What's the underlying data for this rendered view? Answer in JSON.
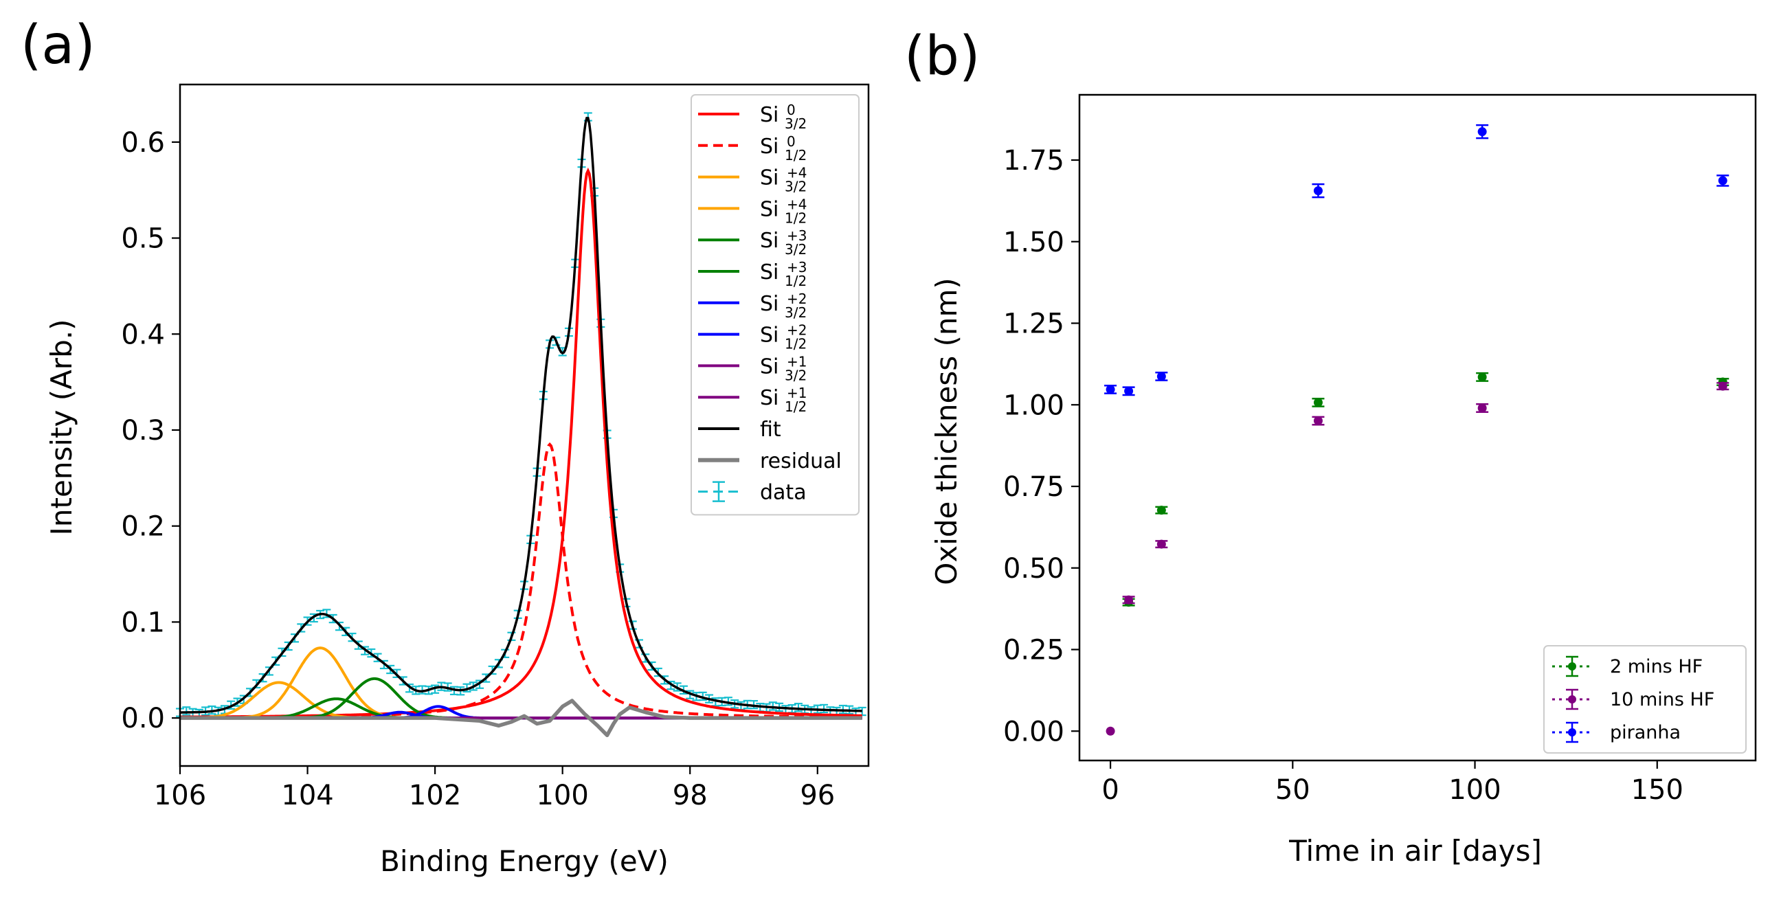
{
  "chart_data": [
    {
      "panel_label": "(a)",
      "type": "line",
      "xlabel": "Binding Energy (eV)",
      "ylabel": "Intensity (Arb.)",
      "xlim": [
        106,
        95.2
      ],
      "ylim": [
        -0.05,
        0.66
      ],
      "xticks": [
        106,
        104,
        102,
        100,
        98,
        96
      ],
      "xtick_labels": [
        "106",
        "104",
        "102",
        "100",
        "98",
        "96"
      ],
      "yticks": [
        0.0,
        0.1,
        0.2,
        0.3,
        0.4,
        0.5,
        0.6
      ],
      "ytick_labels": [
        "0.0",
        "0.1",
        "0.2",
        "0.3",
        "0.4",
        "0.5",
        "0.6"
      ],
      "legend_position": "top-right",
      "components": [
        {
          "name": "Si0 3/2",
          "base": "Si",
          "sup": "0",
          "sub": "3/2",
          "color": "#ff0000",
          "dash": "solid",
          "model": "lorentz",
          "center": 99.6,
          "amplitude": 0.57,
          "width": 0.28
        },
        {
          "name": "Si0 1/2",
          "base": "Si",
          "sup": "0",
          "sub": "1/2",
          "color": "#ff0000",
          "dash": "dashed",
          "model": "lorentz",
          "center": 100.2,
          "amplitude": 0.285,
          "width": 0.28
        },
        {
          "name": "Si+4 3/2",
          "base": "Si",
          "sup": "+4",
          "sub": "3/2",
          "color": "#ffa500",
          "dash": "solid",
          "model": "gauss",
          "center": 103.8,
          "amplitude": 0.073,
          "width": 0.55
        },
        {
          "name": "Si+4 1/2",
          "base": "Si",
          "sup": "+4",
          "sub": "1/2",
          "color": "#ffa500",
          "dash": "solid",
          "model": "gauss",
          "center": 104.45,
          "amplitude": 0.037,
          "width": 0.55
        },
        {
          "name": "Si+3 3/2",
          "base": "Si",
          "sup": "+3",
          "sub": "3/2",
          "color": "#008000",
          "dash": "solid",
          "model": "gauss",
          "center": 102.95,
          "amplitude": 0.041,
          "width": 0.5
        },
        {
          "name": "Si+3 1/2",
          "base": "Si",
          "sup": "+3",
          "sub": "1/2",
          "color": "#008000",
          "dash": "solid",
          "model": "gauss",
          "center": 103.55,
          "amplitude": 0.02,
          "width": 0.5
        },
        {
          "name": "Si+2 3/2",
          "base": "Si",
          "sup": "+2",
          "sub": "3/2",
          "color": "#0000ff",
          "dash": "solid",
          "model": "gauss",
          "center": 101.95,
          "amplitude": 0.012,
          "width": 0.3
        },
        {
          "name": "Si+2 1/2",
          "base": "Si",
          "sup": "+2",
          "sub": "1/2",
          "color": "#0000ff",
          "dash": "solid",
          "model": "gauss",
          "center": 102.55,
          "amplitude": 0.006,
          "width": 0.3
        },
        {
          "name": "Si+1 3/2",
          "base": "Si",
          "sup": "+1",
          "sub": "3/2",
          "color": "#800080",
          "dash": "solid",
          "model": "gauss",
          "center": 101.0,
          "amplitude": 0.0,
          "width": 0.4
        },
        {
          "name": "Si+1 1/2",
          "base": "Si",
          "sup": "+1",
          "sub": "1/2",
          "color": "#800080",
          "dash": "solid",
          "model": "gauss",
          "center": 101.6,
          "amplitude": 0.0,
          "width": 0.4
        }
      ],
      "fit": {
        "name": "fit",
        "color": "#000000",
        "baseline": 0.004
      },
      "residual": {
        "name": "residual",
        "color": "#808080",
        "x": [
          106.0,
          104.0,
          102.0,
          101.3,
          101.0,
          100.8,
          100.6,
          100.4,
          100.2,
          100.0,
          99.85,
          99.65,
          99.45,
          99.3,
          99.2,
          99.1,
          98.95,
          98.7,
          98.4,
          98.0,
          97.0,
          95.3
        ],
        "y": [
          0.0,
          0.0,
          0.0,
          -0.003,
          -0.008,
          -0.004,
          0.002,
          -0.006,
          -0.003,
          0.012,
          0.018,
          0.004,
          -0.008,
          -0.018,
          -0.006,
          0.004,
          0.011,
          0.006,
          0.001,
          0.0,
          0.0,
          0.0
        ]
      },
      "data_series": {
        "name": "data",
        "color": "#17becf",
        "x_start": 106.0,
        "x_end": 95.3,
        "step": 0.1,
        "error": 0.004
      }
    },
    {
      "panel_label": "(b)",
      "type": "scatter",
      "xlabel": "Time in air [days]",
      "ylabel": "Oxide thickness (nm)",
      "xlim": [
        -8.5,
        177
      ],
      "ylim": [
        -0.09,
        1.95
      ],
      "xticks": [
        0,
        50,
        100,
        150
      ],
      "xtick_labels": [
        "0",
        "50",
        "100",
        "150"
      ],
      "yticks": [
        0.0,
        0.25,
        0.5,
        0.75,
        1.0,
        1.25,
        1.5,
        1.75
      ],
      "ytick_labels": [
        "0.00",
        "0.25",
        "0.50",
        "0.75",
        "1.00",
        "1.25",
        "1.50",
        "1.75"
      ],
      "legend_position": "bottom-right",
      "series": [
        {
          "name": "2 mins HF",
          "color": "#008000",
          "x": [
            5,
            14,
            57,
            102,
            168
          ],
          "y": [
            0.395,
            0.677,
            1.007,
            1.085,
            1.07
          ],
          "err": [
            0.01,
            0.01,
            0.012,
            0.012,
            0.01
          ]
        },
        {
          "name": "10 mins HF",
          "color": "#800080",
          "x": [
            0,
            5,
            14,
            57,
            102,
            168
          ],
          "y": [
            0.0,
            0.402,
            0.573,
            0.951,
            0.99,
            1.057
          ],
          "err": [
            0.0,
            0.01,
            0.01,
            0.012,
            0.012,
            0.01
          ]
        },
        {
          "name": "piranha",
          "color": "#0000ff",
          "x": [
            0,
            5,
            14,
            57,
            102,
            168
          ],
          "y": [
            1.047,
            1.042,
            1.087,
            1.656,
            1.837,
            1.687
          ],
          "err": [
            0.012,
            0.012,
            0.012,
            0.02,
            0.02,
            0.016
          ]
        }
      ]
    }
  ]
}
